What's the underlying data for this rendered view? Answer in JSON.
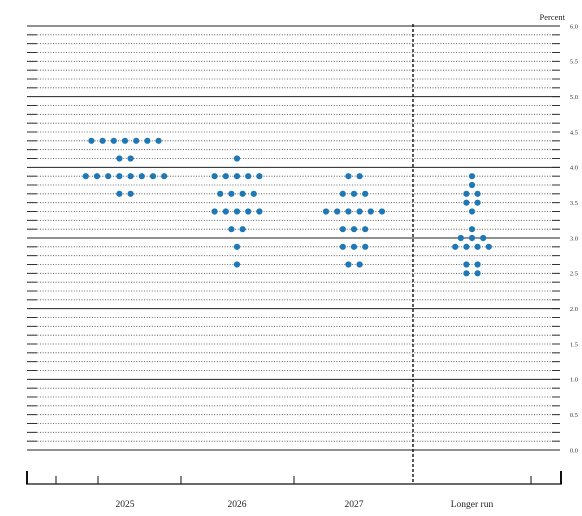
{
  "chart_data": {
    "type": "scatter",
    "unit_label": "Percent",
    "categories": [
      "2025",
      "2026",
      "2027",
      "Longer run"
    ],
    "ylim": [
      0,
      6
    ],
    "y_ticks": [
      "0.0",
      "0.5",
      "1.0",
      "1.5",
      "2.0",
      "2.5",
      "3.0",
      "3.5",
      "4.0",
      "4.5",
      "5.0",
      "5.5",
      "6.0"
    ],
    "dot_color": "#1f78b4",
    "grid": "dotted at 0.125 intervals, solid at whole percents",
    "divider_before": "Longer run",
    "points": {
      "2025": [
        {
          "y": 4.375,
          "count": 7
        },
        {
          "y": 4.125,
          "count": 2
        },
        {
          "y": 3.875,
          "count": 8
        },
        {
          "y": 3.625,
          "count": 2
        }
      ],
      "2026": [
        {
          "y": 4.125,
          "count": 1
        },
        {
          "y": 3.875,
          "count": 5
        },
        {
          "y": 3.625,
          "count": 4
        },
        {
          "y": 3.375,
          "count": 5
        },
        {
          "y": 3.125,
          "count": 2
        },
        {
          "y": 2.875,
          "count": 1
        },
        {
          "y": 2.625,
          "count": 1
        }
      ],
      "2027": [
        {
          "y": 3.875,
          "count": 2
        },
        {
          "y": 3.625,
          "count": 3
        },
        {
          "y": 3.375,
          "count": 6
        },
        {
          "y": 3.125,
          "count": 3
        },
        {
          "y": 2.875,
          "count": 3
        },
        {
          "y": 2.625,
          "count": 2
        }
      ],
      "Longer run": [
        {
          "y": 3.875,
          "count": 1
        },
        {
          "y": 3.75,
          "count": 1
        },
        {
          "y": 3.625,
          "count": 2
        },
        {
          "y": 3.5,
          "count": 2
        },
        {
          "y": 3.375,
          "count": 1
        },
        {
          "y": 3.125,
          "count": 1
        },
        {
          "y": 3.0,
          "count": 3
        },
        {
          "y": 2.875,
          "count": 4
        },
        {
          "y": 2.625,
          "count": 2
        },
        {
          "y": 2.5,
          "count": 2
        }
      ]
    }
  }
}
